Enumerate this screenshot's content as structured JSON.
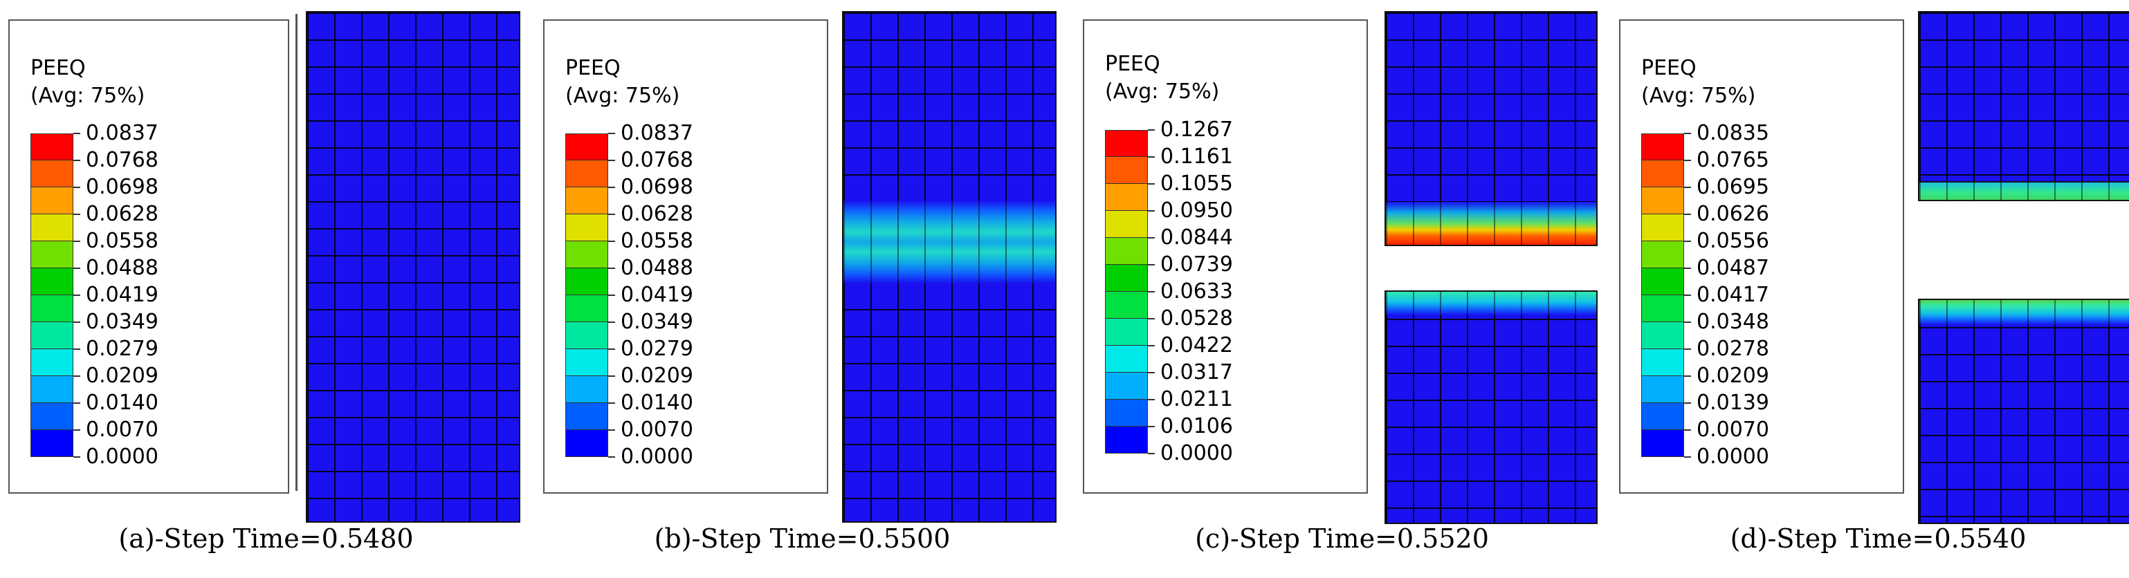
{
  "legend_colors": [
    "#ff0000",
    "#ff5a00",
    "#ffa000",
    "#e0e000",
    "#70e000",
    "#00d000",
    "#00e040",
    "#00e8a0",
    "#00e8e8",
    "#00b0ff",
    "#0060ff",
    "#0000ff"
  ],
  "panels": [
    {
      "title": "PEEQ",
      "subtitle": "(Avg: 75%)",
      "values": [
        "0.0837",
        "0.0768",
        "0.0698",
        "0.0628",
        "0.0558",
        "0.0488",
        "0.0419",
        "0.0349",
        "0.0279",
        "0.0209",
        "0.0140",
        "0.0070",
        "0.0000"
      ],
      "caption": "(a)-Step Time=0.5480"
    },
    {
      "title": "PEEQ",
      "subtitle": "(Avg: 75%)",
      "values": [
        "0.0837",
        "0.0768",
        "0.0698",
        "0.0628",
        "0.0558",
        "0.0488",
        "0.0419",
        "0.0349",
        "0.0279",
        "0.0209",
        "0.0140",
        "0.0070",
        "0.0000"
      ],
      "caption": "(b)-Step Time=0.5500"
    },
    {
      "title": "PEEQ",
      "subtitle": "(Avg: 75%)",
      "values": [
        "0.1267",
        "0.1161",
        "0.1055",
        "0.0950",
        "0.0844",
        "0.0739",
        "0.0633",
        "0.0528",
        "0.0422",
        "0.0317",
        "0.0211",
        "0.0106",
        "0.0000"
      ],
      "caption": "(c)-Step Time=0.5520"
    },
    {
      "title": "PEEQ",
      "subtitle": "(Avg: 75%)",
      "values": [
        "0.0835",
        "0.0765",
        "0.0695",
        "0.0626",
        "0.0556",
        "0.0487",
        "0.0417",
        "0.0348",
        "0.0278",
        "0.0209",
        "0.0139",
        "0.0070",
        "0.0000"
      ],
      "caption": "(d)-Step Time=0.5540"
    }
  ]
}
